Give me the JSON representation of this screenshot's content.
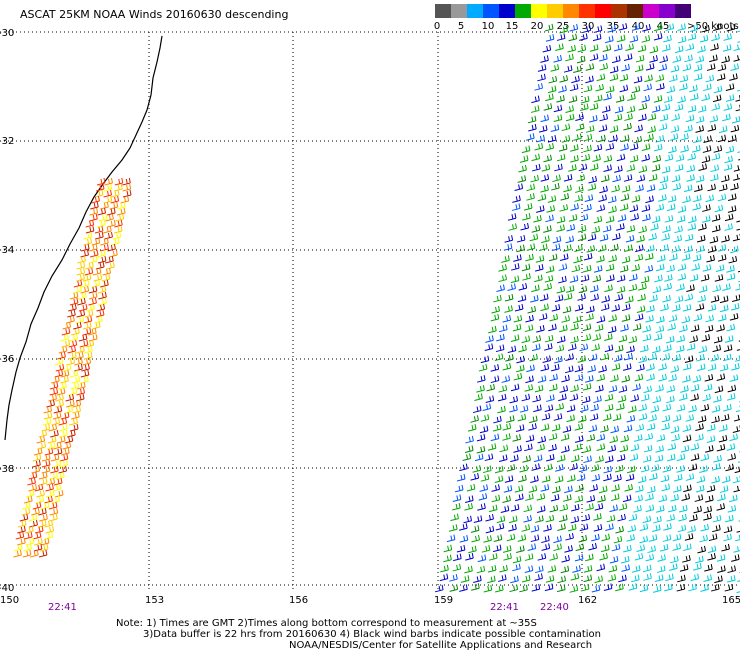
{
  "title": "ASCAT 25KM NOAA Winds 20160630 descending",
  "speed_scale": {
    "colors": [
      "#555555",
      "#999999",
      "#00aaff",
      "#0055ff",
      "#0000cc",
      "#00aa00",
      "#ffff00",
      "#ffcc00",
      "#ff8800",
      "#ff3300",
      "#ff0000",
      "#aa3300",
      "#662200",
      "#cc00cc",
      "#8800cc",
      "#440077"
    ],
    "tick_labels": [
      "0",
      "5",
      "10",
      "15",
      "20",
      "25",
      "30",
      "35",
      "40",
      "45"
    ],
    "unit_label": ">50 knots"
  },
  "axes": {
    "longitude_labels": [
      "150",
      "153",
      "156",
      "159",
      "162",
      "165"
    ],
    "latitude_labels": [
      "-30",
      "-32",
      "-34",
      "-36",
      "-38",
      "-40"
    ]
  },
  "pass_times": [
    "22:41",
    "22:41",
    "22:40"
  ],
  "notes": {
    "line1": "Note: 1) Times are GMT 2)Times along bottom correspond to measurement at ~35S",
    "line2": "3)Data buffer is 22 hrs from 20160630 4) Black wind barbs indicate possible contamination",
    "line3": "NOAA/NESDIS/Center for Satellite Applications and Research"
  }
}
